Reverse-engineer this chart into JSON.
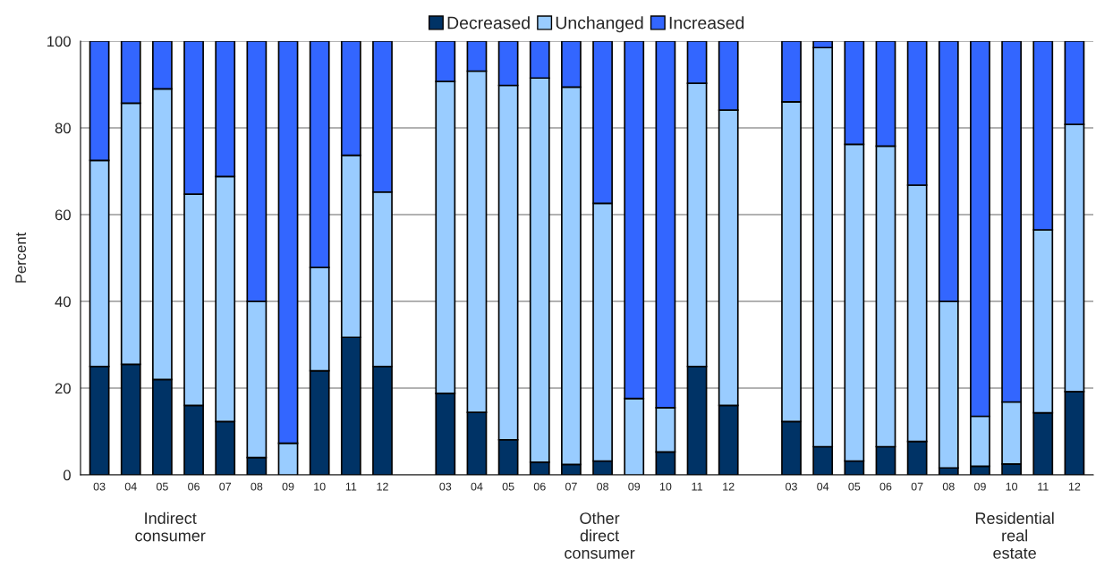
{
  "chart_data": {
    "type": "bar",
    "stacked": true,
    "ylabel": "Percent",
    "categories": [
      "03",
      "04",
      "05",
      "06",
      "07",
      "08",
      "09",
      "10",
      "11",
      "12",
      null,
      "03",
      "04",
      "05",
      "06",
      "07",
      "08",
      "09",
      "10",
      "11",
      "12",
      null,
      "03",
      "04",
      "05",
      "06",
      "07",
      "08",
      "09",
      "10",
      "11",
      "12"
    ],
    "series": [
      {
        "name": "Decreased",
        "color": "#003366",
        "values": [
          25,
          25.5,
          22,
          16,
          12.3,
          4,
          0,
          24,
          31.7,
          25,
          null,
          18.8,
          14.4,
          8.1,
          2.9,
          2.4,
          3.2,
          0,
          5.3,
          25,
          16,
          null,
          12.3,
          6.5,
          3.2,
          6.5,
          7.7,
          1.6,
          2,
          2.5,
          14.3,
          19.2
        ]
      },
      {
        "name": "Unchanged",
        "color": "#99ccff",
        "values": [
          47.5,
          60.2,
          67,
          48.7,
          56.5,
          36,
          7.3,
          23.8,
          42,
          40.2,
          null,
          71.9,
          78.7,
          81.7,
          88.6,
          87,
          59.4,
          17.6,
          10.2,
          65.3,
          68.1,
          null,
          73.7,
          92,
          73,
          69.3,
          59.1,
          38.4,
          11.5,
          14.3,
          42.2,
          61.6
        ]
      },
      {
        "name": "Increased",
        "color": "#3366ff",
        "values": [
          27.5,
          14.3,
          11,
          35.3,
          31.2,
          60,
          92.7,
          52.2,
          26.3,
          34.8,
          null,
          9.3,
          6.9,
          10.2,
          8.5,
          10.6,
          37.4,
          82.4,
          84.5,
          9.7,
          15.9,
          null,
          14,
          1.5,
          23.8,
          24.2,
          33.2,
          60,
          86.5,
          83.2,
          43.5,
          19.2
        ]
      }
    ],
    "ylim": [
      0,
      100
    ],
    "yticks": [
      0,
      20,
      40,
      60,
      80,
      100
    ],
    "grid": "y",
    "legend": "top",
    "annotations": [
      "Indirect\nconsumer",
      "Other\ndirect\nconsumer",
      "Residential\nreal\nestate"
    ]
  }
}
